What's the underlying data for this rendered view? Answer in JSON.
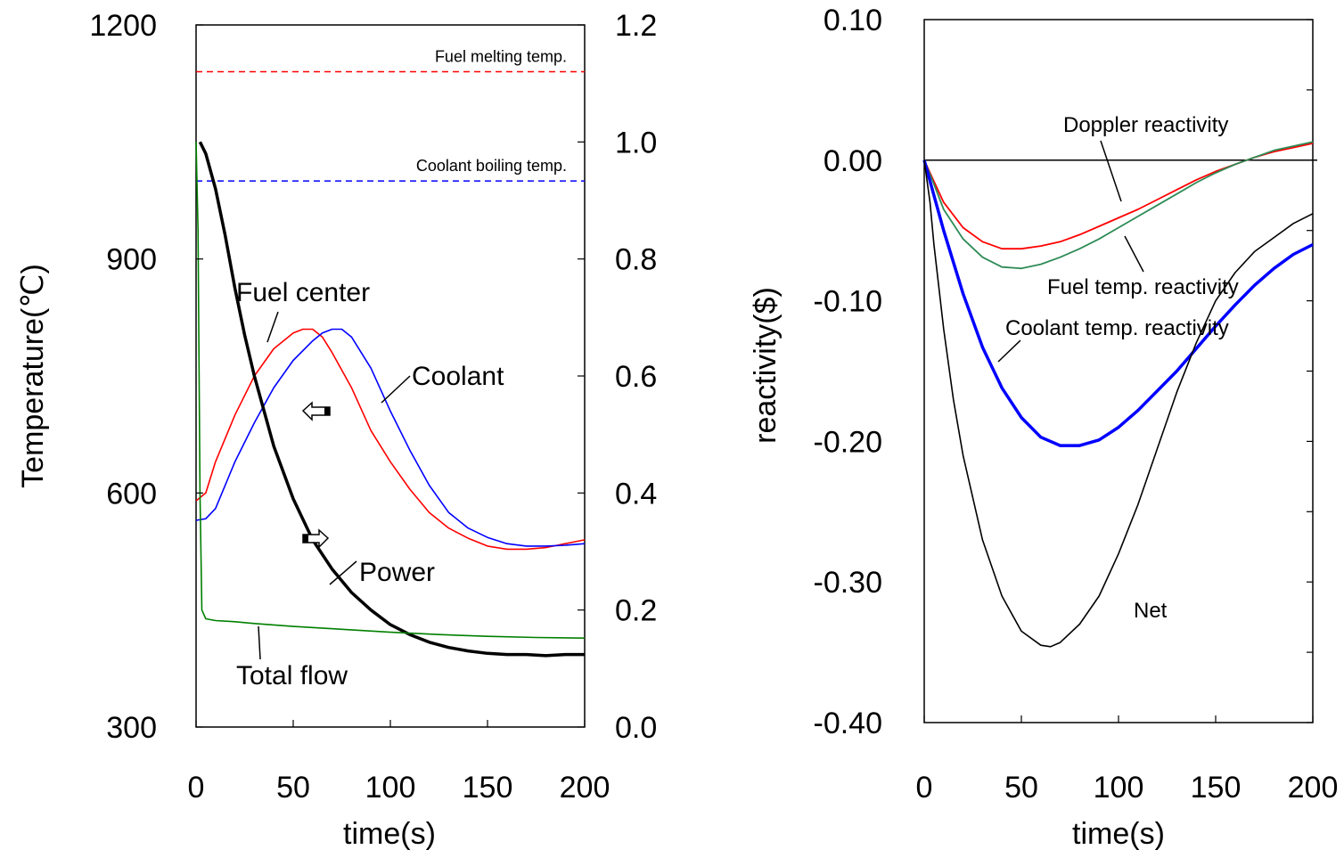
{
  "colors": {
    "fuel": "#ff0000",
    "coolant": "#0000ff",
    "power": "#000000",
    "flow": "#008000",
    "fuel_reactivity": "#2e8b57",
    "net": "#000000"
  },
  "chart_data": [
    {
      "type": "line",
      "xlabel": "time(s)",
      "ylabel": "Temperature(℃)",
      "xlim": [
        0,
        200
      ],
      "ylim": [
        300,
        1200
      ],
      "y2lim": [
        0.0,
        1.2
      ],
      "xticks": [
        "0",
        "50",
        "100",
        "150",
        "200"
      ],
      "yticks": [
        "300",
        "600",
        "900",
        "1200"
      ],
      "y2ticks": [
        "0.0",
        "0.2",
        "0.4",
        "0.6",
        "0.8",
        "1.0",
        "1.2"
      ],
      "reference_lines": [
        {
          "label": "Fuel melting temp.",
          "y": 1140,
          "color": "#ff0000"
        },
        {
          "label": "Coolant boiling temp.",
          "y": 1000,
          "color": "#0000ff"
        }
      ],
      "labels": {
        "fuel": "Fuel center",
        "coolant": "Coolant",
        "power": "Power",
        "flow": "Total flow"
      },
      "series": [
        {
          "name": "Fuel center",
          "axis": "left",
          "color": "#ff0000",
          "x": [
            0,
            5,
            10,
            20,
            30,
            40,
            50,
            55,
            60,
            65,
            70,
            80,
            90,
            100,
            110,
            120,
            130,
            140,
            150,
            160,
            170,
            180,
            190,
            200
          ],
          "y": [
            590,
            600,
            640,
            700,
            750,
            785,
            805,
            810,
            810,
            800,
            780,
            735,
            680,
            640,
            605,
            575,
            555,
            542,
            532,
            528,
            528,
            530,
            535,
            540
          ]
        },
        {
          "name": "Coolant",
          "axis": "left",
          "color": "#0000ff",
          "x": [
            0,
            5,
            10,
            15,
            20,
            30,
            40,
            50,
            60,
            65,
            70,
            75,
            80,
            90,
            100,
            110,
            120,
            130,
            140,
            150,
            160,
            170,
            180,
            190,
            200
          ],
          "y": [
            565,
            567,
            580,
            610,
            640,
            690,
            735,
            770,
            795,
            805,
            810,
            810,
            800,
            760,
            705,
            655,
            610,
            575,
            555,
            543,
            535,
            532,
            532,
            533,
            535
          ]
        },
        {
          "name": "Power",
          "axis": "right",
          "color": "#000000",
          "x": [
            2,
            5,
            10,
            15,
            20,
            25,
            30,
            35,
            40,
            50,
            60,
            70,
            80,
            90,
            100,
            110,
            120,
            130,
            140,
            150,
            160,
            170,
            180,
            190,
            200
          ],
          "y": [
            1.0,
            0.98,
            0.92,
            0.84,
            0.75,
            0.67,
            0.6,
            0.54,
            0.48,
            0.39,
            0.32,
            0.27,
            0.23,
            0.2,
            0.175,
            0.158,
            0.145,
            0.136,
            0.13,
            0.126,
            0.124,
            0.124,
            0.122,
            0.124,
            0.124
          ]
        },
        {
          "name": "Total flow",
          "axis": "right",
          "color": "#008000",
          "x": [
            0,
            1,
            2,
            3,
            5,
            10,
            20,
            30,
            50,
            75,
            100,
            125,
            150,
            175,
            200
          ],
          "y": [
            1.0,
            0.85,
            0.4,
            0.2,
            0.185,
            0.182,
            0.18,
            0.177,
            0.172,
            0.167,
            0.162,
            0.158,
            0.155,
            0.153,
            0.152
          ]
        }
      ]
    },
    {
      "type": "line",
      "xlabel": "time(s)",
      "ylabel": "reactivity($)",
      "xlim": [
        0,
        200
      ],
      "ylim": [
        -0.4,
        0.1
      ],
      "xticks": [
        "0",
        "50",
        "100",
        "150",
        "200"
      ],
      "yticks": [
        "-0.40",
        "-0.30",
        "-0.20",
        "-0.10",
        "0.00",
        "0.10"
      ],
      "labels": {
        "doppler": "Doppler reactivity",
        "fuel": "Fuel temp. reactivity",
        "coolant": "Coolant temp. reactivity",
        "net": "Net"
      },
      "series": [
        {
          "name": "Doppler reactivity",
          "color": "#ff0000",
          "x": [
            0,
            5,
            10,
            20,
            30,
            40,
            50,
            60,
            70,
            80,
            90,
            100,
            110,
            120,
            130,
            140,
            150,
            160,
            170,
            180,
            190,
            200
          ],
          "y": [
            0.0,
            -0.015,
            -0.03,
            -0.048,
            -0.058,
            -0.063,
            -0.063,
            -0.061,
            -0.058,
            -0.053,
            -0.047,
            -0.041,
            -0.035,
            -0.028,
            -0.021,
            -0.014,
            -0.008,
            -0.003,
            0.002,
            0.006,
            0.009,
            0.012
          ]
        },
        {
          "name": "Fuel temp. reactivity",
          "color": "#2e8b57",
          "x": [
            0,
            5,
            10,
            20,
            30,
            40,
            50,
            60,
            70,
            80,
            90,
            100,
            110,
            120,
            130,
            140,
            150,
            160,
            170,
            180,
            190,
            200
          ],
          "y": [
            0.0,
            -0.017,
            -0.035,
            -0.056,
            -0.069,
            -0.076,
            -0.077,
            -0.074,
            -0.069,
            -0.063,
            -0.056,
            -0.048,
            -0.04,
            -0.032,
            -0.024,
            -0.016,
            -0.009,
            -0.003,
            0.002,
            0.007,
            0.01,
            0.013
          ]
        },
        {
          "name": "Coolant temp. reactivity",
          "color": "#0000ff",
          "x": [
            0,
            5,
            10,
            20,
            30,
            40,
            50,
            60,
            70,
            80,
            90,
            100,
            110,
            120,
            130,
            140,
            150,
            160,
            170,
            180,
            190,
            200
          ],
          "y": [
            0.0,
            -0.025,
            -0.05,
            -0.095,
            -0.133,
            -0.162,
            -0.183,
            -0.197,
            -0.203,
            -0.203,
            -0.199,
            -0.19,
            -0.178,
            -0.164,
            -0.15,
            -0.134,
            -0.118,
            -0.103,
            -0.089,
            -0.077,
            -0.067,
            -0.06
          ]
        },
        {
          "name": "Net",
          "color": "#000000",
          "x": [
            0,
            3,
            5,
            10,
            15,
            20,
            30,
            40,
            50,
            60,
            65,
            70,
            80,
            90,
            100,
            110,
            120,
            130,
            140,
            150,
            160,
            170,
            180,
            190,
            200
          ],
          "y": [
            0.0,
            -0.03,
            -0.06,
            -0.12,
            -0.17,
            -0.21,
            -0.27,
            -0.31,
            -0.335,
            -0.345,
            -0.346,
            -0.343,
            -0.33,
            -0.31,
            -0.28,
            -0.245,
            -0.205,
            -0.165,
            -0.13,
            -0.1,
            -0.08,
            -0.065,
            -0.055,
            -0.045,
            -0.038
          ]
        }
      ]
    }
  ]
}
